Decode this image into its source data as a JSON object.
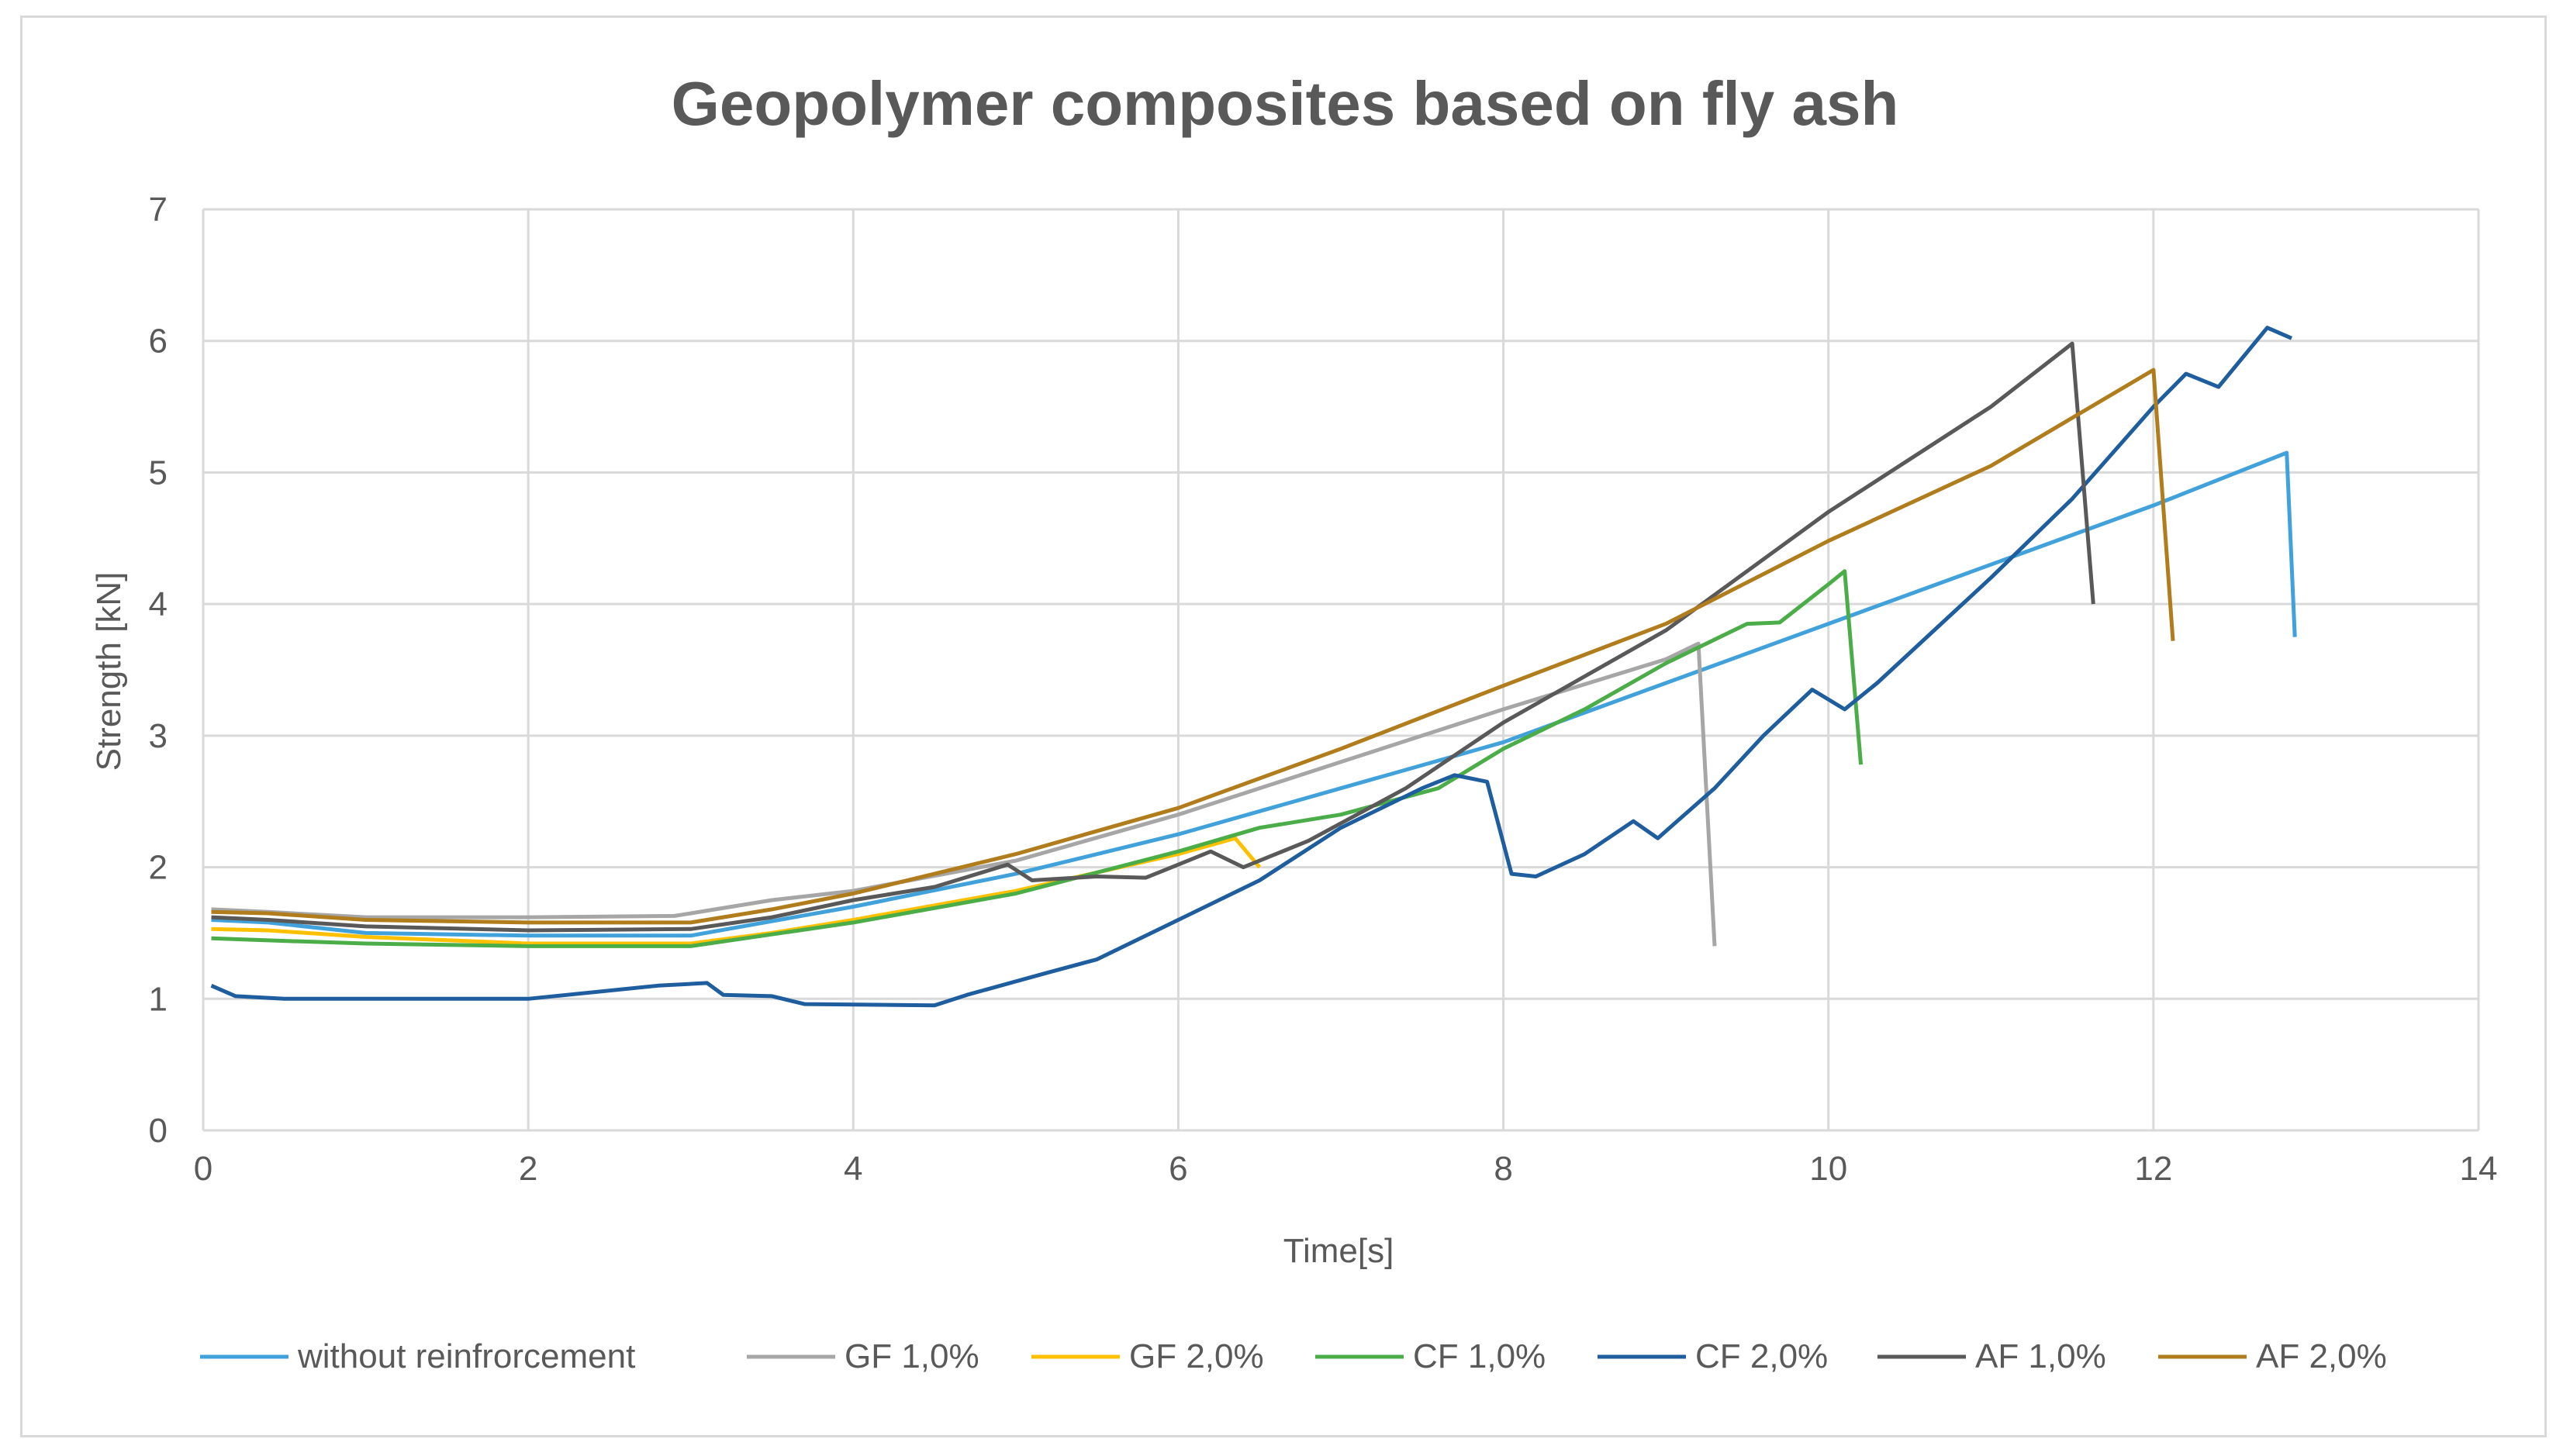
{
  "chart_data": {
    "type": "line",
    "title": "Geopolymer composites based on fly ash",
    "xlabel": "Time[s]",
    "ylabel": "Strength [kN]",
    "xlim": [
      0,
      14
    ],
    "ylim": [
      0,
      7
    ],
    "xticks": [
      "0",
      "2",
      "4",
      "6",
      "8",
      "10",
      "12",
      "14"
    ],
    "yticks": [
      "0",
      "1",
      "2",
      "3",
      "4",
      "5",
      "6",
      "7"
    ],
    "grid": true,
    "legend_position": "bottom",
    "series": [
      {
        "name": "without reinfrorcement",
        "color": "#41a1db",
        "points": [
          [
            0.05,
            1.6
          ],
          [
            0.4,
            1.58
          ],
          [
            1,
            1.5
          ],
          [
            2,
            1.48
          ],
          [
            3,
            1.48
          ],
          [
            4,
            1.7
          ],
          [
            5,
            1.95
          ],
          [
            6,
            2.25
          ],
          [
            7,
            2.6
          ],
          [
            8,
            2.95
          ],
          [
            9,
            3.4
          ],
          [
            10,
            3.85
          ],
          [
            11,
            4.3
          ],
          [
            12,
            4.75
          ],
          [
            12.82,
            5.15
          ],
          [
            12.87,
            3.75
          ]
        ]
      },
      {
        "name": "GF 1,0%",
        "color": "#a6a6a6",
        "points": [
          [
            0.05,
            1.68
          ],
          [
            0.4,
            1.66
          ],
          [
            1,
            1.62
          ],
          [
            2,
            1.62
          ],
          [
            2.9,
            1.63
          ],
          [
            3.5,
            1.75
          ],
          [
            4,
            1.82
          ],
          [
            5,
            2.05
          ],
          [
            6,
            2.4
          ],
          [
            7,
            2.8
          ],
          [
            8,
            3.2
          ],
          [
            9,
            3.58
          ],
          [
            9.2,
            3.7
          ],
          [
            9.3,
            1.4
          ]
        ]
      },
      {
        "name": "GF 2,0%",
        "color": "#ffc000",
        "points": [
          [
            0.05,
            1.53
          ],
          [
            0.4,
            1.52
          ],
          [
            1,
            1.47
          ],
          [
            2,
            1.42
          ],
          [
            3,
            1.42
          ],
          [
            3.5,
            1.5
          ],
          [
            4,
            1.6
          ],
          [
            5,
            1.82
          ],
          [
            6,
            2.1
          ],
          [
            6.35,
            2.22
          ],
          [
            6.5,
            2.0
          ]
        ]
      },
      {
        "name": "CF 1,0%",
        "color": "#4aad47",
        "points": [
          [
            0.05,
            1.46
          ],
          [
            0.5,
            1.44
          ],
          [
            1,
            1.42
          ],
          [
            2,
            1.4
          ],
          [
            3,
            1.4
          ],
          [
            4,
            1.58
          ],
          [
            5,
            1.8
          ],
          [
            6,
            2.12
          ],
          [
            6.5,
            2.3
          ],
          [
            7,
            2.4
          ],
          [
            7.6,
            2.6
          ],
          [
            8,
            2.9
          ],
          [
            8.5,
            3.2
          ],
          [
            9,
            3.55
          ],
          [
            9.5,
            3.85
          ],
          [
            9.7,
            3.86
          ],
          [
            10,
            4.15
          ],
          [
            10.1,
            4.25
          ],
          [
            10.2,
            2.78
          ]
        ]
      },
      {
        "name": "CF 2,0%",
        "color": "#1e5d9e",
        "points": [
          [
            0.05,
            1.1
          ],
          [
            0.2,
            1.02
          ],
          [
            0.5,
            1.0
          ],
          [
            2,
            1.0
          ],
          [
            2.8,
            1.1
          ],
          [
            3.1,
            1.12
          ],
          [
            3.2,
            1.03
          ],
          [
            3.5,
            1.02
          ],
          [
            3.7,
            0.96
          ],
          [
            4.5,
            0.95
          ],
          [
            4.7,
            1.03
          ],
          [
            5.2,
            1.2
          ],
          [
            5.5,
            1.3
          ],
          [
            6,
            1.6
          ],
          [
            6.5,
            1.9
          ],
          [
            7,
            2.3
          ],
          [
            7.5,
            2.6
          ],
          [
            7.7,
            2.7
          ],
          [
            7.9,
            2.65
          ],
          [
            8.05,
            1.95
          ],
          [
            8.2,
            1.93
          ],
          [
            8.5,
            2.1
          ],
          [
            8.8,
            2.35
          ],
          [
            8.95,
            2.22
          ],
          [
            9.3,
            2.6
          ],
          [
            9.6,
            3.0
          ],
          [
            9.9,
            3.35
          ],
          [
            10.1,
            3.2
          ],
          [
            10.3,
            3.4
          ],
          [
            11,
            4.2
          ],
          [
            11.5,
            4.8
          ],
          [
            12,
            5.5
          ],
          [
            12.2,
            5.75
          ],
          [
            12.4,
            5.65
          ],
          [
            12.7,
            6.1
          ],
          [
            12.85,
            6.02
          ]
        ]
      },
      {
        "name": "AF 1,0%",
        "color": "#595959",
        "points": [
          [
            0.05,
            1.62
          ],
          [
            0.4,
            1.6
          ],
          [
            1,
            1.55
          ],
          [
            2,
            1.52
          ],
          [
            3,
            1.53
          ],
          [
            3.5,
            1.62
          ],
          [
            4,
            1.75
          ],
          [
            4.5,
            1.85
          ],
          [
            4.95,
            2.02
          ],
          [
            5.1,
            1.9
          ],
          [
            5.5,
            1.93
          ],
          [
            5.8,
            1.92
          ],
          [
            6.2,
            2.12
          ],
          [
            6.4,
            2.0
          ],
          [
            6.8,
            2.2
          ],
          [
            7.4,
            2.6
          ],
          [
            8,
            3.1
          ],
          [
            9,
            3.8
          ],
          [
            10,
            4.7
          ],
          [
            11,
            5.5
          ],
          [
            11.5,
            5.98
          ],
          [
            11.63,
            4.0
          ]
        ]
      },
      {
        "name": "AF 2,0%",
        "color": "#b07c1c",
        "points": [
          [
            0.05,
            1.66
          ],
          [
            0.4,
            1.65
          ],
          [
            1,
            1.6
          ],
          [
            2,
            1.58
          ],
          [
            3,
            1.58
          ],
          [
            3.5,
            1.68
          ],
          [
            4,
            1.8
          ],
          [
            5,
            2.1
          ],
          [
            6,
            2.45
          ],
          [
            7,
            2.9
          ],
          [
            8,
            3.38
          ],
          [
            9,
            3.85
          ],
          [
            10,
            4.48
          ],
          [
            11,
            5.05
          ],
          [
            12,
            5.78
          ],
          [
            12.12,
            3.72
          ]
        ]
      }
    ]
  }
}
